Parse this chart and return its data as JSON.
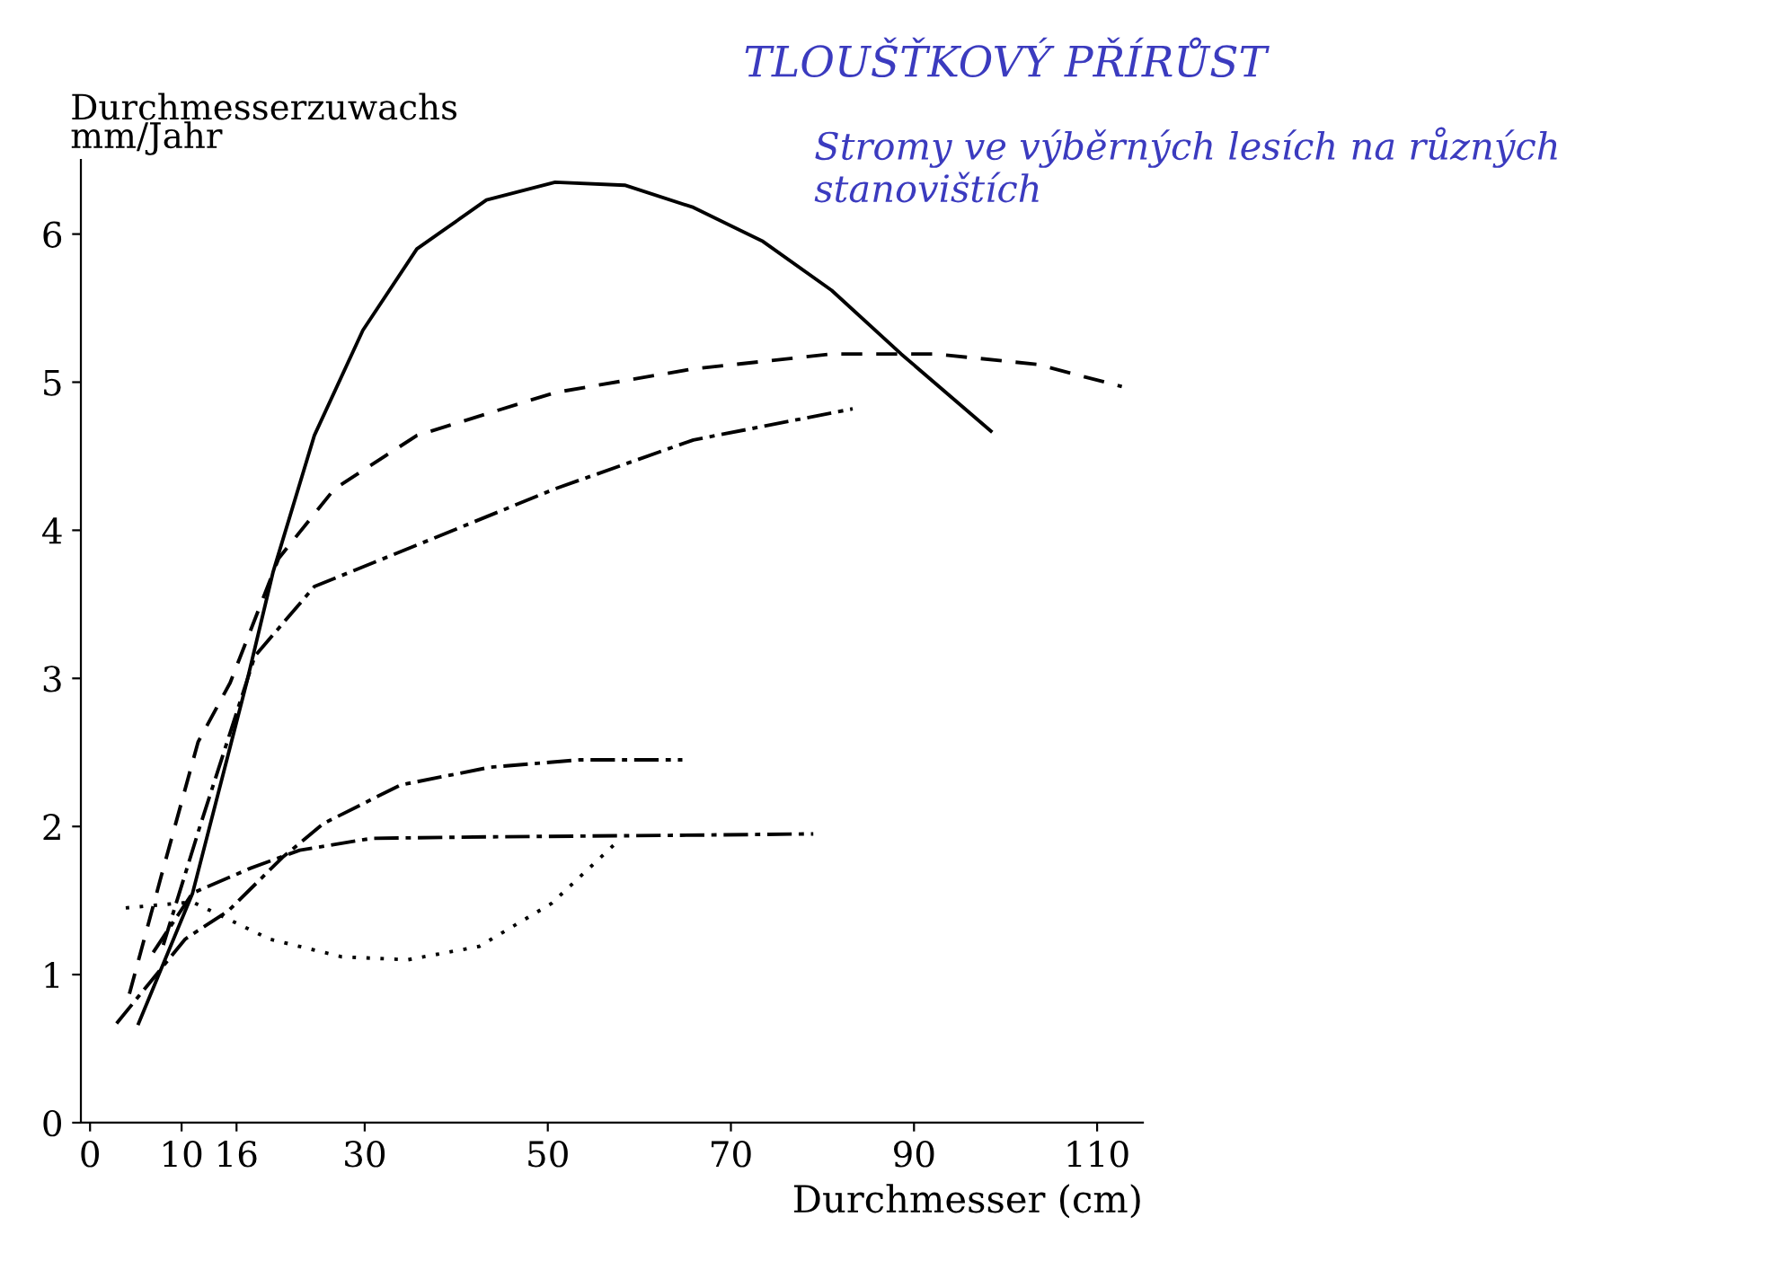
{
  "chart_data": {
    "type": "line",
    "title": "TLOUŠŤKOVÝ PŘÍRŮST",
    "subtitle": "Stromy ve výběrných lesích na různých stanovištích",
    "xlabel": "Durchmesser (cm)",
    "ylabel": "Durchmesserzuwachs\nmm/Jahr",
    "series": [
      {
        "color": "#000000",
        "line_style": "solid",
        "x": [
          5.3,
          11.2,
          17.1,
          20.0,
          24.5,
          29.8,
          35.7,
          43.3,
          50.8,
          58.4,
          65.9,
          73.5,
          81.0,
          88.6,
          98.4
        ],
        "values": [
          0.67,
          1.55,
          2.97,
          3.72,
          4.64,
          5.35,
          5.9,
          6.23,
          6.35,
          6.33,
          6.18,
          5.95,
          5.62,
          5.19,
          4.67
        ]
      },
      {
        "color": "#000000",
        "line_style": "dashed",
        "x": [
          4.3,
          7.8,
          11.8,
          15.3,
          20.6,
          26.7,
          35.7,
          50.8,
          65.9,
          81.0,
          92.4,
          103.5,
          112.7
        ],
        "values": [
          0.87,
          1.67,
          2.57,
          2.97,
          3.81,
          4.28,
          4.64,
          4.93,
          5.09,
          5.19,
          5.19,
          5.12,
          4.97
        ]
      },
      {
        "color": "#000000",
        "line_style": "dashdot",
        "x": [
          8.0,
          12.0,
          18.0,
          24.5,
          35.7,
          50.8,
          65.9,
          83.3
        ],
        "values": [
          1.2,
          2.0,
          3.15,
          3.62,
          3.9,
          4.28,
          4.61,
          4.82
        ]
      },
      {
        "color": "#000000",
        "line_style": "dashdot",
        "x": [
          2.9,
          10.4,
          15.1,
          21.0,
          25.5,
          33.9,
          43.7,
          53.5,
          64.7
        ],
        "values": [
          0.67,
          1.24,
          1.43,
          1.79,
          2.02,
          2.28,
          2.4,
          2.45,
          2.45
        ]
      },
      {
        "color": "#000000",
        "line_style": "dashdot",
        "x": [
          6.9,
          11.2,
          17.6,
          22.9,
          30.8,
          43.7,
          63.3,
          79.0
        ],
        "values": [
          1.15,
          1.55,
          1.72,
          1.84,
          1.92,
          1.93,
          1.94,
          1.95
        ]
      },
      {
        "color": "#000000",
        "line_style": "dotted",
        "x": [
          3.9,
          11.2,
          19.6,
          27.5,
          34.7,
          42.5,
          50.4,
          57.3
        ],
        "values": [
          1.45,
          1.49,
          1.24,
          1.12,
          1.1,
          1.19,
          1.48,
          1.88
        ]
      }
    ],
    "xlim": [
      -1,
      115
    ],
    "ylim": [
      0,
      6.5
    ],
    "xticks": [
      0,
      10,
      16,
      30,
      50,
      70,
      90,
      110
    ],
    "yticks": [
      0,
      1,
      2,
      3,
      4,
      5,
      6
    ],
    "grid": false,
    "legend": false
  }
}
